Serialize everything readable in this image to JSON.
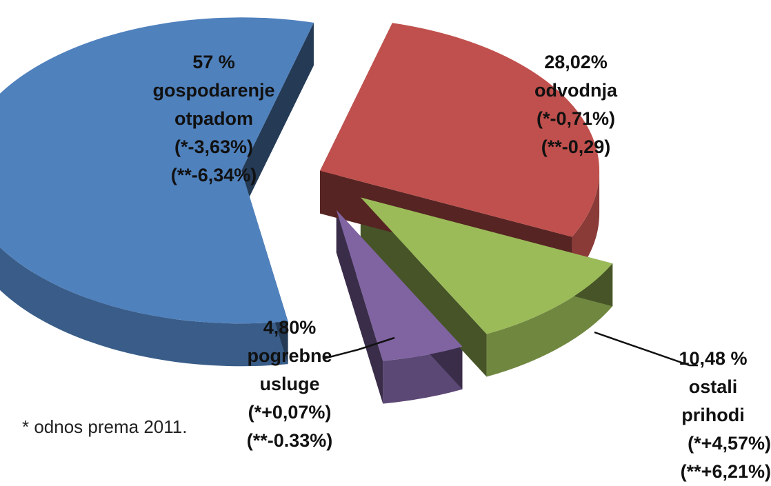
{
  "chart_data": {
    "type": "pie",
    "categories": [
      "gospodarenje otpadom",
      "odvodnja",
      "ostali prihodi",
      "pogrebne usluge"
    ],
    "values": [
      57,
      28.02,
      10.48,
      4.8
    ],
    "value_labels": [
      "57 %",
      "28,02%",
      "10,48 %",
      "4,80%"
    ],
    "notes": [
      [
        "(*-3,63%)",
        "(**-6,34%)"
      ],
      [
        "(*-0,71%)",
        "(**-0,29)"
      ],
      [
        "(*+4,57%)",
        "(**+6,21%)"
      ],
      [
        "(*+0,07%)",
        "(**-0.33%)"
      ]
    ],
    "colors": [
      "#4f81bd",
      "#c0504d",
      "#9bbb59",
      "#8064a2"
    ],
    "footnote": "* odnos prema 2011."
  }
}
